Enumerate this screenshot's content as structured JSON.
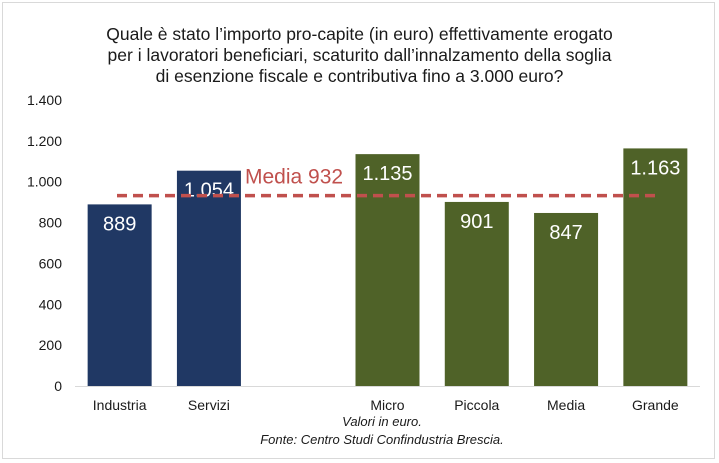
{
  "title_lines": [
    "Quale è stato l’importo pro-capite (in euro) effettivamente erogato",
    "per i lavoratori beneficiari, scaturito dall’innalzamento della soglia",
    "di esenzione fiscale e contributiva fino a 3.000 euro?"
  ],
  "notes": {
    "unit": "Valori in euro.",
    "source": "Fonte: Centro Studi Confindustria Brescia."
  },
  "colors": {
    "sector_bar": "#203864",
    "size_bar": "#4f6228",
    "average_line": "#c0504d",
    "bar_label": "#ffffff",
    "axis_text": "#1a1a1a"
  },
  "chart_data": {
    "type": "bar",
    "categories": [
      "Industria",
      "Servizi",
      "",
      "Micro",
      "Piccola",
      "Media",
      "Grande"
    ],
    "values": [
      889,
      1054,
      null,
      1135,
      901,
      847,
      1163
    ],
    "value_labels": [
      "889",
      "1.054",
      "",
      "1.135",
      "901",
      "847",
      "1.163"
    ],
    "bar_groups": [
      "sector",
      "sector",
      null,
      "size",
      "size",
      "size",
      "size"
    ],
    "ylim": [
      0,
      1400
    ],
    "yticks": [
      0,
      200,
      400,
      600,
      800,
      1000,
      1200,
      1400
    ],
    "ytick_labels": [
      "0",
      "200",
      "400",
      "600",
      "800",
      "1.000",
      "1.200",
      "1.400"
    ],
    "reference_line": {
      "value": 932,
      "label": "Media 932",
      "style": "dashed"
    },
    "xlabel": "",
    "ylabel": "",
    "grid": false,
    "legend": "none"
  }
}
